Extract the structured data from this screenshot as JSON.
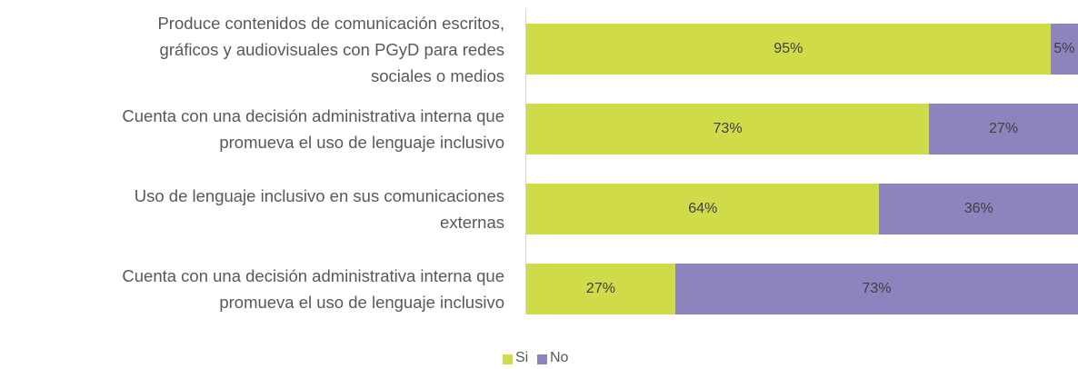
{
  "chart_data": {
    "type": "stacked-bar-horizontal",
    "categories": [
      "Produce contenidos de comunicación escritos,\ngráficos y audiovisuales con PGyD para redes\nsociales o medios",
      "Cuenta con una decisión administrativa interna que\npromueva el uso de lenguaje inclusivo",
      "Uso de lenguaje inclusivo en sus comunicaciones\nexternas",
      "Cuenta con una decisión administrativa interna que\npromueva el uso de lenguaje inclusivo"
    ],
    "series": [
      {
        "name": "Si",
        "color": "#cfdb49",
        "values": [
          95,
          73,
          64,
          27
        ],
        "value_labels": [
          "95%",
          "73%",
          "64%",
          "27%"
        ]
      },
      {
        "name": "No",
        "color": "#8e84bd",
        "values": [
          5,
          27,
          36,
          73
        ],
        "value_labels": [
          "5%",
          "27%",
          "36%",
          "73%"
        ]
      }
    ],
    "xlim": [
      0,
      100
    ],
    "legend": "bottom"
  }
}
